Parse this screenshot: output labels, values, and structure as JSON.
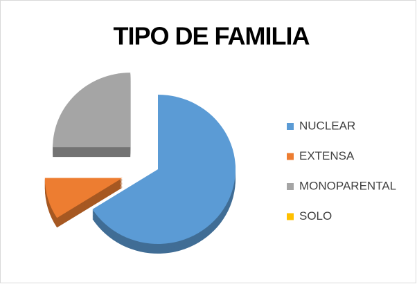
{
  "chart_data": {
    "type": "pie",
    "title": "TIPO DE FAMILIA",
    "categories": [
      "NUCLEAR",
      "EXTENSA",
      "MONOPARENTAL",
      "SOLO"
    ],
    "values": [
      66,
      9,
      25,
      0
    ],
    "colors": [
      "#5b9bd5",
      "#ed7d31",
      "#a5a5a5",
      "#ffc000"
    ],
    "legend": "right"
  }
}
